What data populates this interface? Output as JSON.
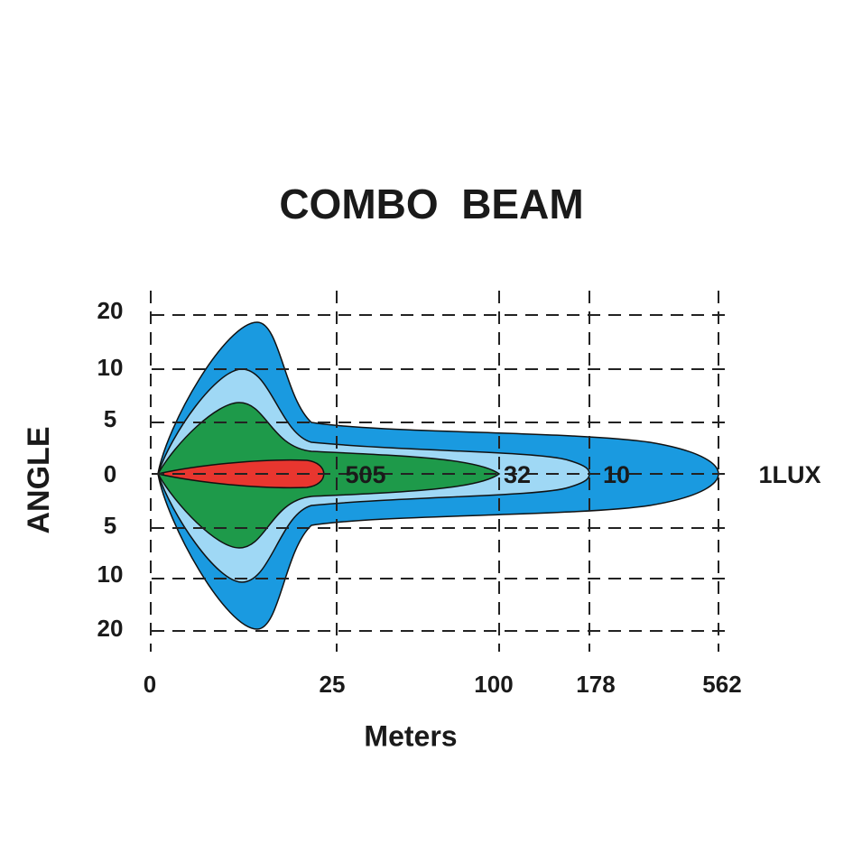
{
  "title": "COMBO  BEAM",
  "y_axis": {
    "label": "ANGLE",
    "ticks": [
      "20",
      "10",
      "5",
      "0",
      "5",
      "10",
      "20"
    ]
  },
  "x_axis": {
    "label": "Meters",
    "ticks": [
      "0",
      "25",
      "100",
      "178",
      "562"
    ]
  },
  "zones": [
    "505",
    "32",
    "10",
    "1LUX"
  ]
}
